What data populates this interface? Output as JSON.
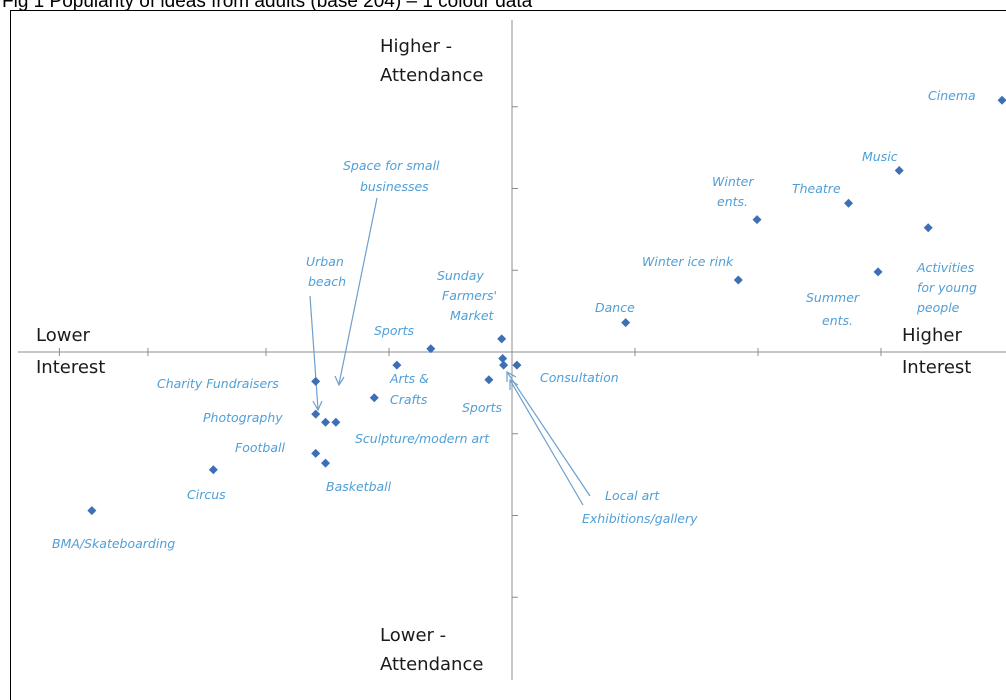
{
  "page_title": "Fig 1 Popularity of ideas from adults (base 204) – 1 colour data",
  "chart_data": {
    "type": "scatter",
    "title": "",
    "axis_labels": {
      "x_low": "Lower Interest",
      "x_high": "Higher Interest",
      "y_high": "Higher - Attendance",
      "y_low": "Lower - Attendance"
    },
    "xlim": [
      -10,
      10
    ],
    "ylim": [
      -10,
      10
    ],
    "marker_color": "#3d6fb6",
    "label_color": "#4f9fd6",
    "points": [
      {
        "label": "Cinema",
        "x": 9.96,
        "y": 7.7
      },
      {
        "label": "Music",
        "x": 7.87,
        "y": 5.55
      },
      {
        "label": "Theatre",
        "x": 6.84,
        "y": 4.55
      },
      {
        "label": "Activities for young people",
        "x": 8.46,
        "y": 3.8
      },
      {
        "label": "Winter ents.",
        "x": 4.98,
        "y": 4.05
      },
      {
        "label": "Summer ents.",
        "x": 7.44,
        "y": 2.45
      },
      {
        "label": "Winter ice rink",
        "x": 4.6,
        "y": 2.2
      },
      {
        "label": "Dance",
        "x": 2.31,
        "y": 0.9
      },
      {
        "label": "Sunday Farmers' Market",
        "x": -0.21,
        "y": 0.4
      },
      {
        "label": "Sports",
        "x": -1.65,
        "y": 0.1
      },
      {
        "label": "Consultation",
        "x": 0.1,
        "y": -0.4
      },
      {
        "label": "Local art",
        "x": -0.19,
        "y": -0.2
      },
      {
        "label": "Exhibitions/gallery",
        "x": -0.17,
        "y": -0.4
      },
      {
        "label": "Arts & Crafts",
        "x": -2.34,
        "y": -0.4
      },
      {
        "label": "Sports",
        "x": -0.47,
        "y": -0.85
      },
      {
        "label": "Space for small businesses",
        "x": -2.8,
        "y": -1.4
      },
      {
        "label": "Charity Fundraisers",
        "x": -3.99,
        "y": -0.9
      },
      {
        "label": "Photography",
        "x": -3.99,
        "y": -1.9
      },
      {
        "label": "Urban beach",
        "x": -3.79,
        "y": -2.15
      },
      {
        "label": "Sculpture/modern art",
        "x": -3.58,
        "y": -2.15
      },
      {
        "label": "Football",
        "x": -3.99,
        "y": -3.1
      },
      {
        "label": "Basketball",
        "x": -3.79,
        "y": -3.4
      },
      {
        "label": "Circus",
        "x": -6.07,
        "y": -3.6
      },
      {
        "label": "BMA/Skateboarding",
        "x": -8.54,
        "y": -4.85
      }
    ]
  }
}
